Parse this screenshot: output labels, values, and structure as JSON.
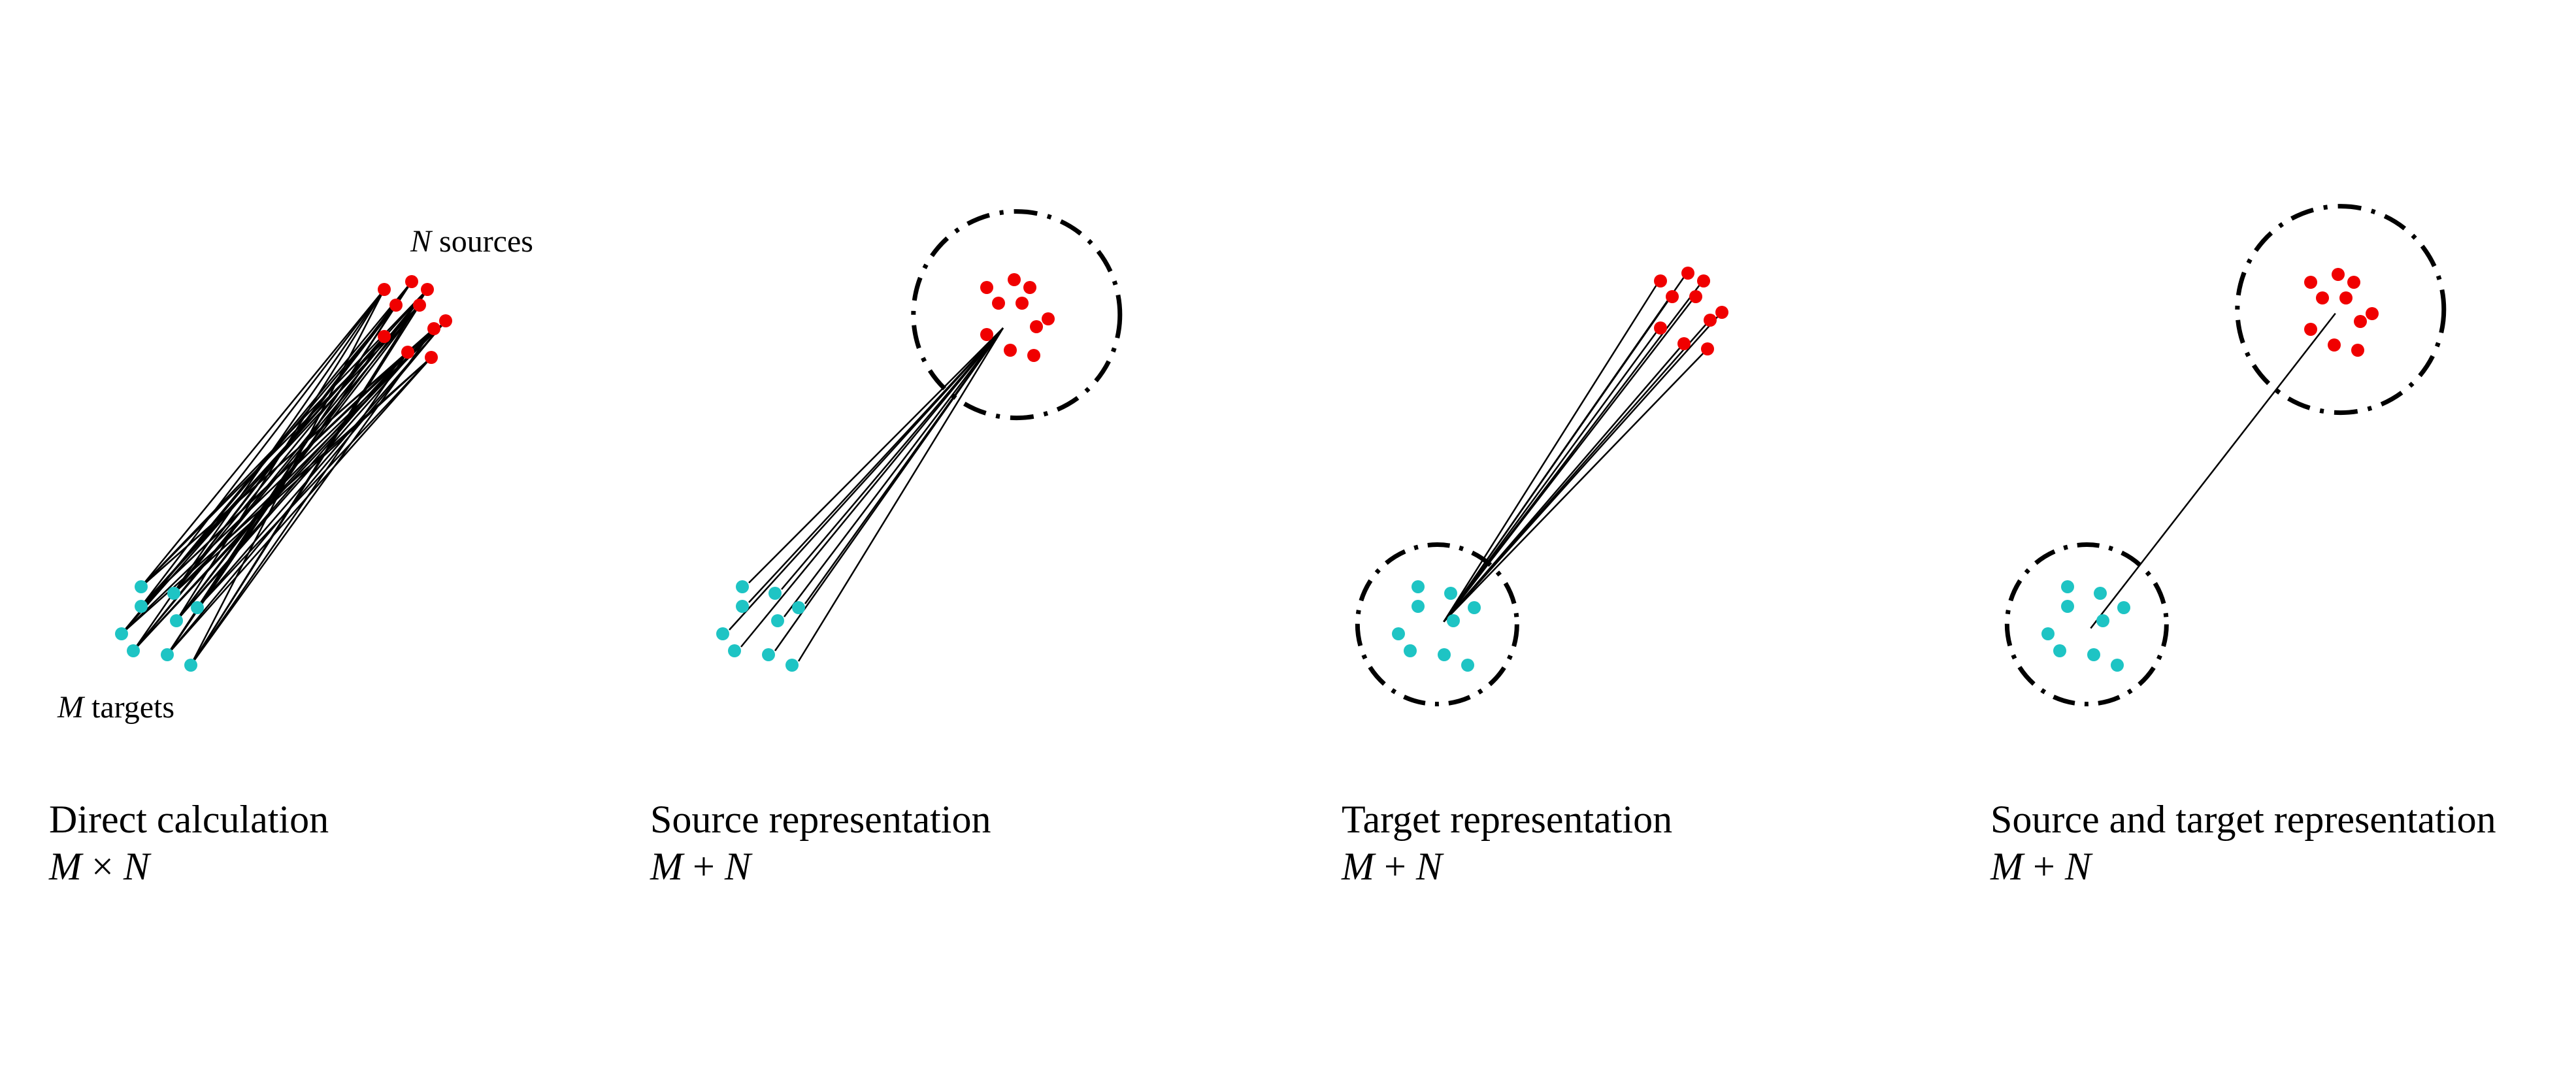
{
  "colors": {
    "source": "#f00000",
    "target": "#1ec4c4",
    "line": "#000000",
    "circle": "#000000",
    "background": "#ffffff"
  },
  "labels": {
    "sources": {
      "var": "N",
      "text": " sources"
    },
    "targets": {
      "var": "M",
      "text": " targets"
    }
  },
  "panels": [
    {
      "title": "Direct calculation",
      "complexity": {
        "a": "M",
        "op": " × ",
        "b": "N"
      },
      "method": "direct"
    },
    {
      "title": "Source representation",
      "complexity": {
        "a": "M",
        "op": " + ",
        "b": "N"
      },
      "method": "source"
    },
    {
      "title": "Target representation",
      "complexity": {
        "a": "M",
        "op": " + ",
        "b": "N"
      },
      "method": "target"
    },
    {
      "title": "Source and target representation",
      "complexity": {
        "a": "M",
        "op": " + ",
        "b": "N"
      },
      "method": "both"
    }
  ]
}
